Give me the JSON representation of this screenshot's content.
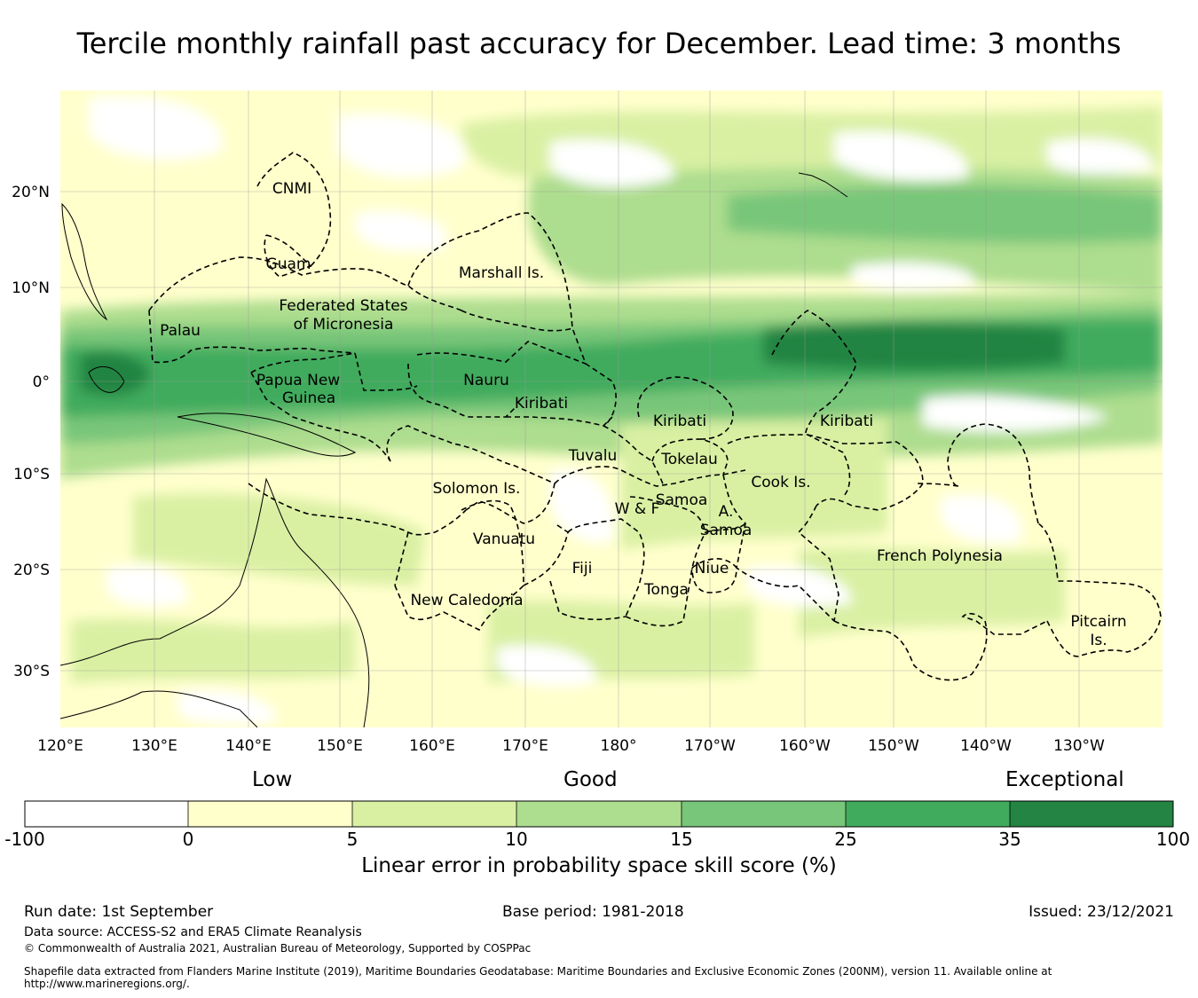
{
  "title": "Tercile monthly rainfall past accuracy for December. Lead time: 3 months",
  "map": {
    "lon_labels": [
      "120°E",
      "130°E",
      "140°E",
      "150°E",
      "160°E",
      "170°E",
      "180°",
      "170°W",
      "160°W",
      "150°W",
      "140°W",
      "130°W"
    ],
    "lat_labels": [
      "20°N",
      "10°N",
      "0°",
      "10°S",
      "20°S",
      "30°S"
    ],
    "regions": [
      "CNMI",
      "Guam",
      "Marshall Is.",
      "Federated States",
      "of Micronesia",
      "Palau",
      "Papua New",
      "Guinea",
      "Nauru",
      "Kiribati",
      "Kiribati",
      "Kiribati",
      "Tuvalu",
      "Tokelau",
      "Cook Is.",
      "Solomon Is.",
      "Samoa",
      "W & F",
      "A.",
      "Samoa",
      "Vanuatu",
      "Fiji",
      "Niue",
      "Tonga",
      "French Polynesia",
      "New Caledonia",
      "Pitcairn",
      "Is."
    ]
  },
  "colorbar": {
    "categories": [
      "Low",
      "Good",
      "Exceptional"
    ],
    "ticks": [
      "-100",
      "0",
      "5",
      "10",
      "15",
      "25",
      "35",
      "100"
    ],
    "colors": [
      "#ffffff",
      "#ffffcc",
      "#d9f0a3",
      "#addd8e",
      "#78c679",
      "#41ab5d",
      "#238443"
    ],
    "label": "Linear error in probability space skill score (%)"
  },
  "footer": {
    "run_date": "Run date: 1st September",
    "base_period": "Base period: 1981-2018",
    "issued": "Issued: 23/12/2021",
    "data_source": "Data source: ACCESS-S2 and ERA5 Climate Reanalysis",
    "copyright": "© Commonwealth of Australia 2021, Australian Bureau of Meteorology, Supported by COSPPac",
    "shapefile": "Shapefile data extracted from Flanders Marine Institute (2019), Maritime Boundaries Geodatabase: Maritime Boundaries and Exclusive Economic Zones (200NM), version 11. Available online at http://www.marineregions.org/."
  }
}
